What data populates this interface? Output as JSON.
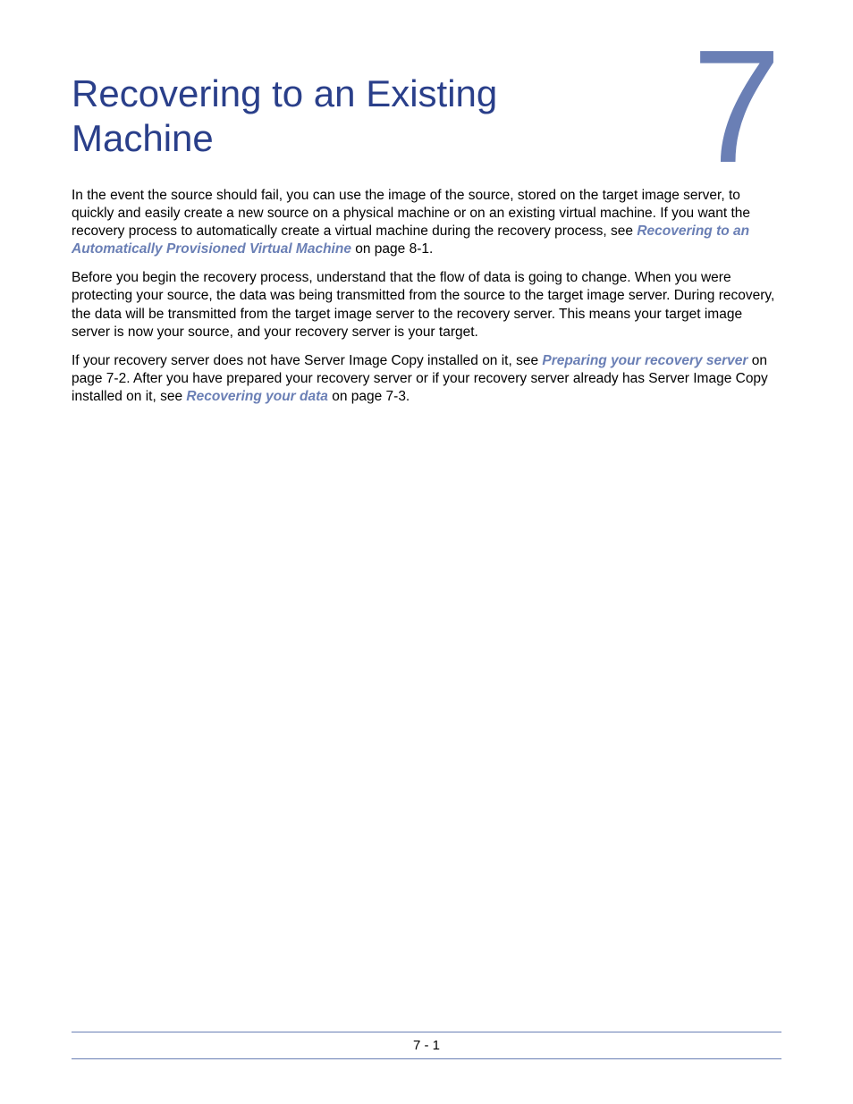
{
  "chapter": {
    "number": "7",
    "title": "Recovering to an Existing Machine"
  },
  "paragraphs": {
    "p1a": "In the event the source should fail, you can use the image of the source, stored on the target image server, to quickly and easily create a new source on a physical machine or on an existing virtual machine. If you want the recovery process to automatically create a virtual machine during the recovery process, see ",
    "p1_link": "Recovering to an Automatically Provisioned Virtual Machine",
    "p1b": " on page 8-1.",
    "p2": "Before you begin the recovery process, understand that the flow of data is going to change. When you were protecting your source, the data was being transmitted from the source to the target image server. During recovery, the data will be transmitted from the target image server to the recovery server. This means your target image server is now your source, and your recovery server is your target.",
    "p3a": "If your recovery server does not have Server Image Copy installed on it, see ",
    "p3_link1": "Preparing your recovery server",
    "p3b": " on page 7-2. After you have prepared your recovery server or if your recovery server already has Server Image Copy installed on it, see ",
    "p3_link2": "Recovering your data",
    "p3c": " on page 7-3."
  },
  "footer": {
    "page_number": "7 - 1"
  },
  "colors": {
    "title_color": "#2a3f8a",
    "chapter_number_color": "#6a7fb5",
    "link_color": "#6a7fb5",
    "body_text_color": "#000000",
    "rule_color": "#6a7fb5"
  }
}
